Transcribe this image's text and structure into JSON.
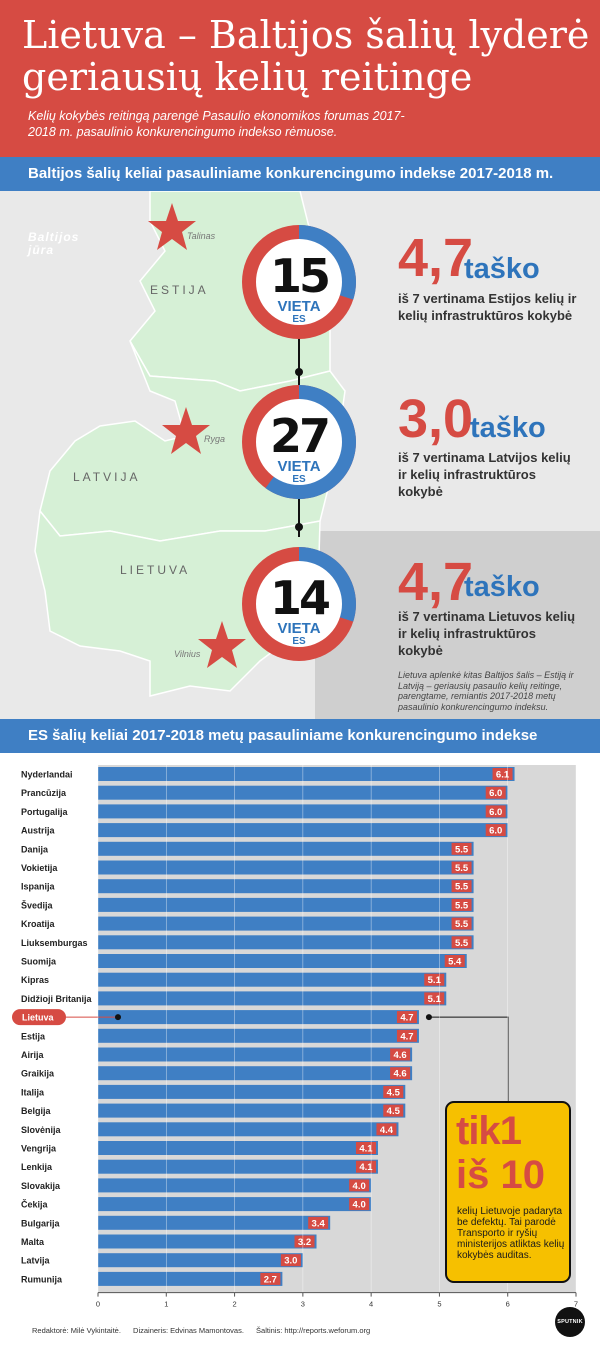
{
  "title": "Lietuva – Baltijos šalių lyderė geriausių kelių reitinge",
  "subtitle": "Kelių kokybės reitingą parengė Pasaulio ekonomikos forumas 2017-2018 m. pasaulinio konkurencingumo indekso rėmuose.",
  "section1_title": "Baltijos šalių keliai pasauliniame konkurencingumo indekse 2017-2018 m.",
  "section2_title": "ES šalių keliai 2017-2018 metų pasauliniame konkurencingumo indekse",
  "map": {
    "sea_label_1": "Baltijos",
    "sea_label_2": "jūra",
    "countries": [
      "ESTIJA",
      "LATVIJA",
      "LIETUVA"
    ],
    "capitals": [
      "Talinas",
      "Ryga",
      "Vilnius"
    ]
  },
  "baltic": [
    {
      "place": "15",
      "vieta": "VIETA",
      "es": "ES",
      "score": "4,7",
      "unit": "taško",
      "desc": "iš 7 vertinama Estijos kelių ir kelių infrastruktūros kokybė",
      "fraction": 0.3
    },
    {
      "place": "27",
      "vieta": "VIETA",
      "es": "ES",
      "score": "3,0",
      "unit": "taško",
      "desc": "iš 7 vertinama Latvijos kelių ir kelių infrastruktūros kokybė",
      "fraction": 0.6
    },
    {
      "place": "14",
      "vieta": "VIETA",
      "es": "ES",
      "score": "4,7",
      "unit": "taško",
      "desc": "iš 7 vertinama Lietuvos kelių ir kelių infrastruktūros kokybė",
      "fraction": 0.3
    }
  ],
  "note": "Lietuva aplenkė kitas Baltijos šalis – Estiją ir Latviją – geriausių pasaulio kelių reitinge, parengtame, remiantis 2017-2018 metų pasaulinio konkurencingumo indeksu.",
  "chart_data": {
    "type": "bar",
    "orientation": "horizontal",
    "title": "ES šalių keliai 2017-2018 metų pasauliniame konkurencingumo indekse",
    "categories": [
      "Nyderlandai",
      "Prancūzija",
      "Portugalija",
      "Austrija",
      "Danija",
      "Vokietija",
      "Ispanija",
      "Švedija",
      "Kroatija",
      "Liuksemburgas",
      "Suomija",
      "Kipras",
      "Didžioji Britanija",
      "Lietuva",
      "Estija",
      "Airija",
      "Graikija",
      "Italija",
      "Belgija",
      "Slovėnija",
      "Vengrija",
      "Lenkija",
      "Slovakija",
      "Čekija",
      "Bulgarija",
      "Malta",
      "Latvija",
      "Rumunija"
    ],
    "values": [
      6.1,
      6.0,
      6.0,
      6.0,
      5.5,
      5.5,
      5.5,
      5.5,
      5.5,
      5.5,
      5.4,
      5.1,
      5.1,
      4.7,
      4.7,
      4.6,
      4.6,
      4.5,
      4.5,
      4.4,
      4.1,
      4.1,
      4.0,
      4.0,
      3.4,
      3.2,
      3.0,
      2.7
    ],
    "value_labels": [
      "6.1",
      "6.0",
      "6.0",
      "6.0",
      "5.5",
      "5.5",
      "5.5",
      "5.5",
      "5.5",
      "5.5",
      "5.4",
      "5.1",
      "5.1",
      "4.7",
      "4.7",
      "4.6",
      "4.6",
      "4.5",
      "4.5",
      "4.4",
      "4.1",
      "4.1",
      "4.0",
      "4.0",
      "3.4",
      "3.2",
      "3.0",
      "2.7"
    ],
    "xlim": [
      0,
      7
    ],
    "xticks": [
      "0",
      "1",
      "2",
      "3",
      "4",
      "5",
      "6",
      "7"
    ],
    "grid": true,
    "highlight": "Lietuva",
    "colors": {
      "bar": "#3f7fc4",
      "label_bg": "#d64b43",
      "track": "#d8d8d8",
      "highlight": "#d64b43"
    }
  },
  "callout": {
    "line1_word": "tik",
    "line1_num": "1",
    "line2_word": "iš",
    "line2_num": "10",
    "text": "kelių Lietuvoje padaryta be defektų. Tai parodė Transporto ir ryšių ministerijos atliktas kelių kokybės auditas."
  },
  "credits": {
    "editor": "Redaktorė: Milė Vykintaitė.",
    "designer": "Dizaineris: Edvinas Mamontovas.",
    "source": "Šaltinis: http://reports.weforum.org"
  },
  "logo_text": "SPUTNIK",
  "colors": {
    "red": "#d64b43",
    "blue": "#3f7fc4",
    "yellow": "#f6c000",
    "land": "#d6f0d6"
  }
}
